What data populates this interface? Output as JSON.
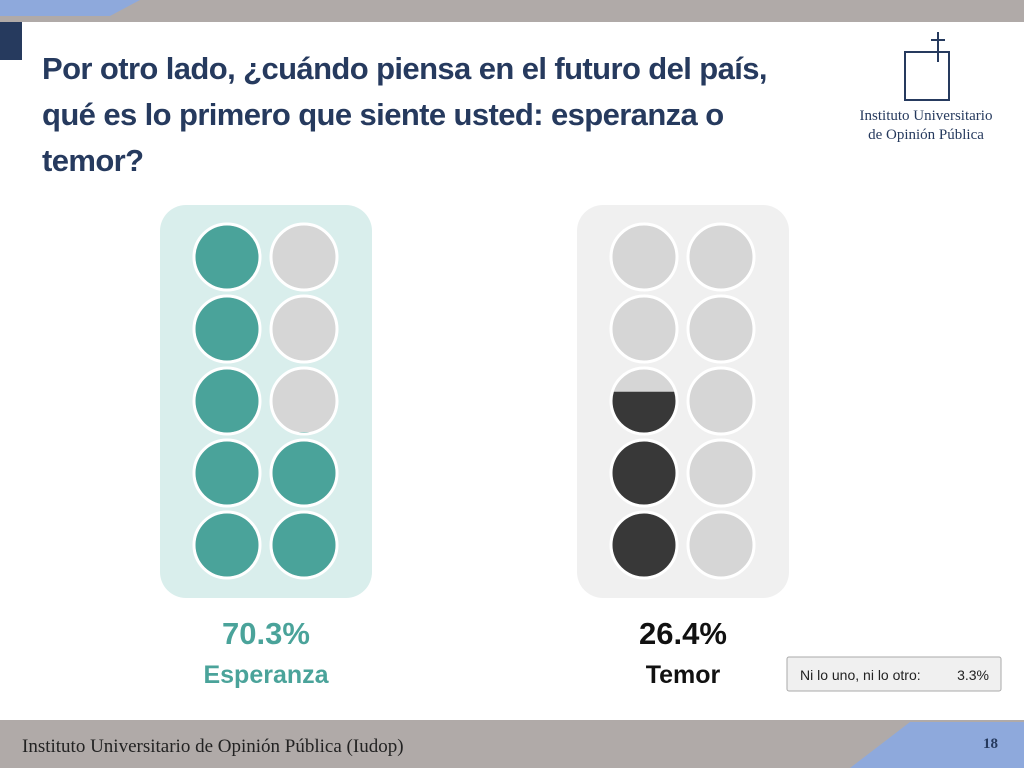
{
  "slide": {
    "logo_line1": "Instituto Universitario",
    "logo_line2": "de Opinión Pública",
    "footer": "Instituto Universitario de Opinión Pública (Iudop)",
    "page": "18"
  },
  "chart_data": {
    "type": "pictogram",
    "title": "Por otro lado, ¿cuándo piensa en el futuro del país, qué es lo primero que siente usted: esperanza o temor?",
    "categories": [
      "Esperanza",
      "Temor"
    ],
    "values": [
      70.3,
      26.4
    ],
    "value_labels": [
      "70.3%",
      "26.4%"
    ],
    "colors": [
      "#4aa39a",
      "#383838"
    ],
    "ylim": [
      0,
      100
    ],
    "other": {
      "name": "Ni lo uno, ni lo otro:",
      "values": [
        3.3
      ],
      "value_labels": [
        "3.3%"
      ]
    }
  }
}
